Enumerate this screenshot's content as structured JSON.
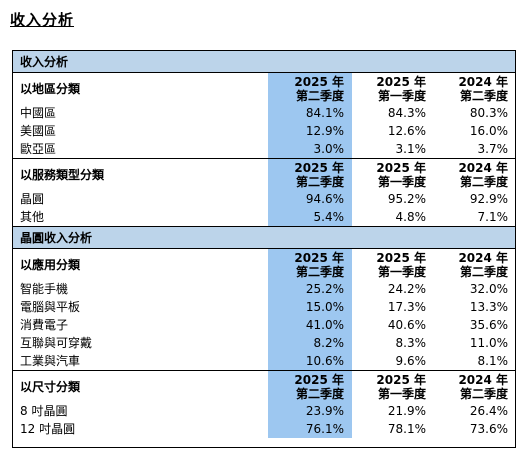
{
  "page_title": "收入分析",
  "sections": [
    {
      "section_title": "收入分析",
      "groups": [
        {
          "label": "以地區分類",
          "columns": [
            [
              "2025 年",
              "第二季度"
            ],
            [
              "2025 年",
              "第一季度"
            ],
            [
              "2024 年",
              "第二季度"
            ]
          ],
          "rows": [
            {
              "name": "中國區",
              "values": [
                "84.1%",
                "84.3%",
                "80.3%"
              ]
            },
            {
              "name": "美國區",
              "values": [
                "12.9%",
                "12.6%",
                "16.0%"
              ]
            },
            {
              "name": "歐亞區",
              "values": [
                "3.0%",
                "3.1%",
                "3.7%"
              ]
            }
          ]
        },
        {
          "label": "以服務類型分類",
          "columns": [
            [
              "2025 年",
              "第二季度"
            ],
            [
              "2025 年",
              "第一季度"
            ],
            [
              "2024 年",
              "第二季度"
            ]
          ],
          "rows": [
            {
              "name": "晶圓",
              "values": [
                "94.6%",
                "95.2%",
                "92.9%"
              ]
            },
            {
              "name": "其他",
              "values": [
                "5.4%",
                "4.8%",
                "7.1%"
              ]
            }
          ]
        }
      ]
    },
    {
      "section_title": "晶圓收入分析",
      "groups": [
        {
          "label": "以應用分類",
          "columns": [
            [
              "2025 年",
              "第二季度"
            ],
            [
              "2025 年",
              "第一季度"
            ],
            [
              "2024 年",
              "第二季度"
            ]
          ],
          "rows": [
            {
              "name": "智能手機",
              "values": [
                "25.2%",
                "24.2%",
                "32.0%"
              ]
            },
            {
              "name": "電腦與平板",
              "values": [
                "15.0%",
                "17.3%",
                "13.3%"
              ]
            },
            {
              "name": "消費電子",
              "values": [
                "41.0%",
                "40.6%",
                "35.6%"
              ]
            },
            {
              "name": "互聯與可穿戴",
              "values": [
                "8.2%",
                "8.3%",
                "11.0%"
              ]
            },
            {
              "name": "工業與汽車",
              "values": [
                "10.6%",
                "9.6%",
                "8.1%"
              ]
            }
          ]
        },
        {
          "label": "以尺寸分類",
          "columns": [
            [
              "2025 年",
              "第二季度"
            ],
            [
              "2025 年",
              "第一季度"
            ],
            [
              "2024 年",
              "第二季度"
            ]
          ],
          "rows": [
            {
              "name": "8 吋晶圓",
              "values": [
                "23.9%",
                "21.9%",
                "26.4%"
              ]
            },
            {
              "name": "12 吋晶圓",
              "values": [
                "76.1%",
                "78.1%",
                "73.6%"
              ]
            }
          ]
        }
      ]
    }
  ]
}
